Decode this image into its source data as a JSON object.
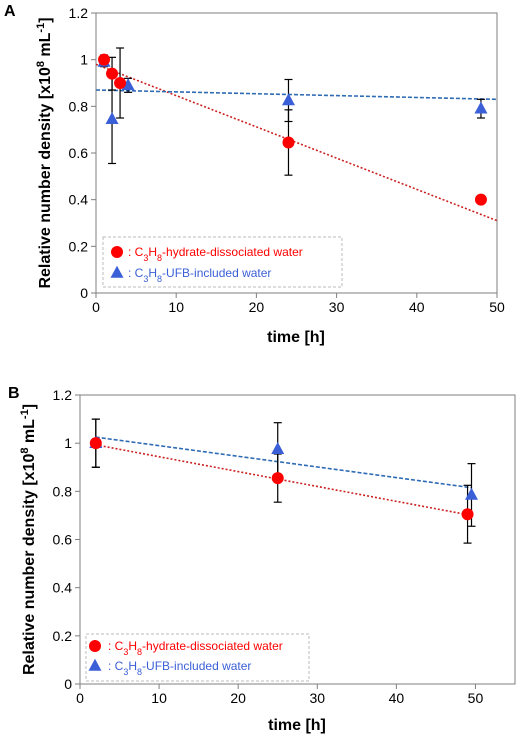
{
  "colors": {
    "hydrate": "#ff0000",
    "ufb": "#3a5fd6",
    "hydrate_fit": "#cc2222",
    "ufb_fit": "#2e6bb5",
    "legend_border": "#bbbbbb",
    "plot_border": "#7f7f7f"
  },
  "chart_data": [
    {
      "type": "scatter",
      "panel_label": "A",
      "xlabel": "time [h]",
      "ylabel": "Relative number density [x10^8 mL^-1]",
      "ylabel_parts": {
        "main": "Relative number density [x10",
        "exp1": "8",
        "mid": " mL",
        "exp2": "-1",
        "end": "]"
      },
      "xlim": [
        0,
        50
      ],
      "ylim": [
        0,
        1.2
      ],
      "xticks": [
        0,
        10,
        20,
        30,
        40,
        50
      ],
      "xtick_labels": [
        "0",
        "10",
        "20",
        "30",
        "40",
        "50"
      ],
      "yticks": [
        0,
        0.2,
        0.4,
        0.6,
        0.8,
        1.0,
        1.2
      ],
      "ytick_labels": [
        "0",
        "0.2",
        "0.4",
        "0.6",
        "0.8",
        "1",
        "1.2"
      ],
      "grid": false,
      "legend_position": "bottom-left",
      "series": [
        {
          "key": "hydrate",
          "marker": "circle",
          "legend": {
            "prefix": ": C",
            "sub1": "3",
            "mid": "H",
            "sub2": "8",
            "suffix": "-hydrate-dissociated water"
          },
          "x": [
            1,
            2,
            3,
            24,
            48
          ],
          "y": [
            1.0,
            0.94,
            0.9,
            0.645,
            0.4
          ],
          "err": [
            0.02,
            0.07,
            0.15,
            0.14,
            0.0
          ],
          "fit": {
            "x": [
              0,
              50
            ],
            "y": [
              0.98,
              0.31
            ]
          }
        },
        {
          "key": "ufb",
          "marker": "triangle",
          "legend": {
            "prefix": ": C",
            "sub1": "3",
            "mid": "H",
            "sub2": "8",
            "suffix": "-UFB-included water"
          },
          "x": [
            1,
            2,
            4,
            24,
            48
          ],
          "y": [
            0.99,
            0.745,
            0.89,
            0.825,
            0.79
          ],
          "err": [
            0.02,
            0.19,
            0.03,
            0.09,
            0.04
          ],
          "fit": {
            "x": [
              0,
              50
            ],
            "y": [
              0.87,
              0.83
            ]
          }
        }
      ]
    },
    {
      "type": "scatter",
      "panel_label": "B",
      "xlabel": "time [h]",
      "ylabel": "Relative number density [x10^8 mL^-1]",
      "ylabel_parts": {
        "main": "Relative number density [x10",
        "exp1": "8",
        "mid": " mL",
        "exp2": "-1",
        "end": "]"
      },
      "xlim": [
        0,
        55
      ],
      "ylim": [
        0,
        1.2
      ],
      "xticks": [
        0,
        10,
        20,
        30,
        40,
        50
      ],
      "xtick_labels": [
        "0",
        "10",
        "20",
        "30",
        "40",
        "50"
      ],
      "yticks": [
        0,
        0.2,
        0.4,
        0.6,
        0.8,
        1.0,
        1.2
      ],
      "ytick_labels": [
        "0",
        "0.2",
        "0.4",
        "0.6",
        "0.8",
        "1",
        "1.2"
      ],
      "grid": false,
      "legend_position": "bottom-left",
      "series": [
        {
          "key": "hydrate",
          "marker": "circle",
          "legend": {
            "prefix": ": C",
            "sub1": "3",
            "mid": "H",
            "sub2": "8",
            "suffix": "-hydrate-dissociated water"
          },
          "x": [
            2,
            25,
            49
          ],
          "y": [
            1.0,
            0.855,
            0.705
          ],
          "err": [
            0.1,
            0.1,
            0.12
          ],
          "fit": {
            "x": [
              2,
              49
            ],
            "y": [
              0.993,
              0.703
            ]
          }
        },
        {
          "key": "ufb",
          "marker": "triangle",
          "legend": {
            "prefix": ": C",
            "sub1": "3",
            "mid": "H",
            "sub2": "8",
            "suffix": "-UFB-included water"
          },
          "x": [
            2,
            25,
            49.5
          ],
          "y": [
            1.0,
            0.975,
            0.785
          ],
          "err": [
            0.1,
            0.11,
            0.13
          ],
          "fit": {
            "x": [
              2,
              49.5
            ],
            "y": [
              1.025,
              0.815
            ]
          }
        }
      ]
    }
  ]
}
